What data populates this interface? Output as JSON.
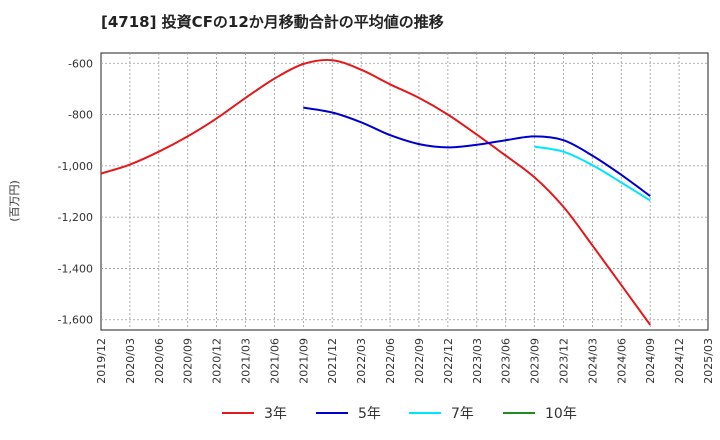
{
  "chart_data": {
    "type": "line",
    "title": "[4718]  投資CFの12か月移動合計の平均値の推移",
    "ylabel": "(百万円)",
    "xlabel": "",
    "ylim": [
      -1640,
      -560
    ],
    "yticks": [
      -600,
      -800,
      -1000,
      -1200,
      -1400,
      -1600
    ],
    "ytick_labels": [
      "-600",
      "-800",
      "-1,000",
      "-1,200",
      "-1,400",
      "-1,600"
    ],
    "xticks": [
      "2019/12",
      "2020/03",
      "2020/06",
      "2020/09",
      "2020/12",
      "2021/03",
      "2021/06",
      "2021/09",
      "2021/12",
      "2022/03",
      "2022/06",
      "2022/09",
      "2022/12",
      "2023/03",
      "2023/06",
      "2023/09",
      "2023/12",
      "2024/03",
      "2024/06",
      "2024/09",
      "2024/12",
      "2025/03"
    ],
    "grid": true,
    "legend_position": "bottom",
    "series": [
      {
        "name": "3年",
        "color": "#e31a1c",
        "x": [
          "2019/12",
          "2020/03",
          "2020/06",
          "2020/09",
          "2020/12",
          "2021/03",
          "2021/06",
          "2021/09",
          "2021/12",
          "2022/03",
          "2022/06",
          "2022/09",
          "2022/12",
          "2023/03",
          "2023/06",
          "2023/09",
          "2023/12",
          "2024/03",
          "2024/06",
          "2024/09"
        ],
        "values": [
          -1030,
          -995,
          -945,
          -885,
          -815,
          -735,
          -660,
          -603,
          -588,
          -625,
          -682,
          -735,
          -800,
          -878,
          -960,
          -1045,
          -1160,
          -1310,
          -1465,
          -1620
        ]
      },
      {
        "name": "5年",
        "color": "#0000cc",
        "x": [
          "2021/09",
          "2021/12",
          "2022/03",
          "2022/06",
          "2022/09",
          "2022/12",
          "2023/03",
          "2023/06",
          "2023/09",
          "2023/12",
          "2024/03",
          "2024/06",
          "2024/09"
        ],
        "values": [
          -773,
          -792,
          -830,
          -880,
          -915,
          -928,
          -918,
          -900,
          -885,
          -900,
          -960,
          -1035,
          -1118
        ]
      },
      {
        "name": "7年",
        "color": "#00e5ff",
        "x": [
          "2023/09",
          "2023/12",
          "2024/03",
          "2024/06",
          "2024/09"
        ],
        "values": [
          -925,
          -945,
          -997,
          -1065,
          -1135
        ]
      },
      {
        "name": "10年",
        "color": "#228b22",
        "x": [],
        "values": []
      }
    ]
  }
}
